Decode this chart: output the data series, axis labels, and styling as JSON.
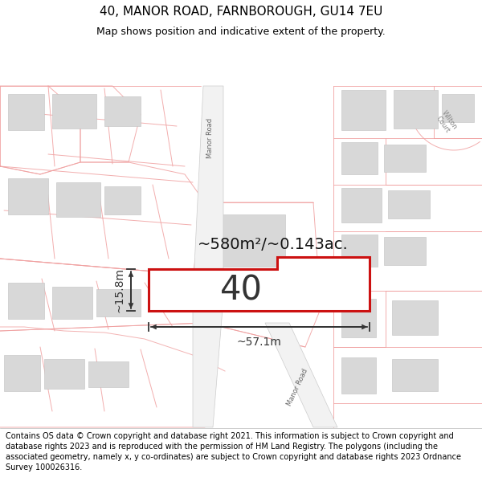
{
  "title_line1": "40, MANOR ROAD, FARNBOROUGH, GU14 7EU",
  "title_line2": "Map shows position and indicative extent of the property.",
  "footer_text": "Contains OS data © Crown copyright and database right 2021. This information is subject to Crown copyright and database rights 2023 and is reproduced with the permission of HM Land Registry. The polygons (including the associated geometry, namely x, y co-ordinates) are subject to Crown copyright and database rights 2023 Ordnance Survey 100026316.",
  "area_text": "~580m²/~0.143ac.",
  "label_40": "40",
  "dim_width": "~57.1m",
  "dim_height": "~15.8m",
  "road_label_top": "Manor Road",
  "road_label_bottom": "Manor Road",
  "wilton_court": "Wilton Court",
  "title_fontsize": 11,
  "subtitle_fontsize": 9,
  "footer_fontsize": 7.0,
  "background_color": "#ffffff",
  "map_background": "#f7f7f7",
  "plot_color": "#cc1111",
  "road_color": "#f0f0f0",
  "boundary_color": "#f0a0a0",
  "building_color": "#d8d8d8",
  "dim_color": "#333333"
}
